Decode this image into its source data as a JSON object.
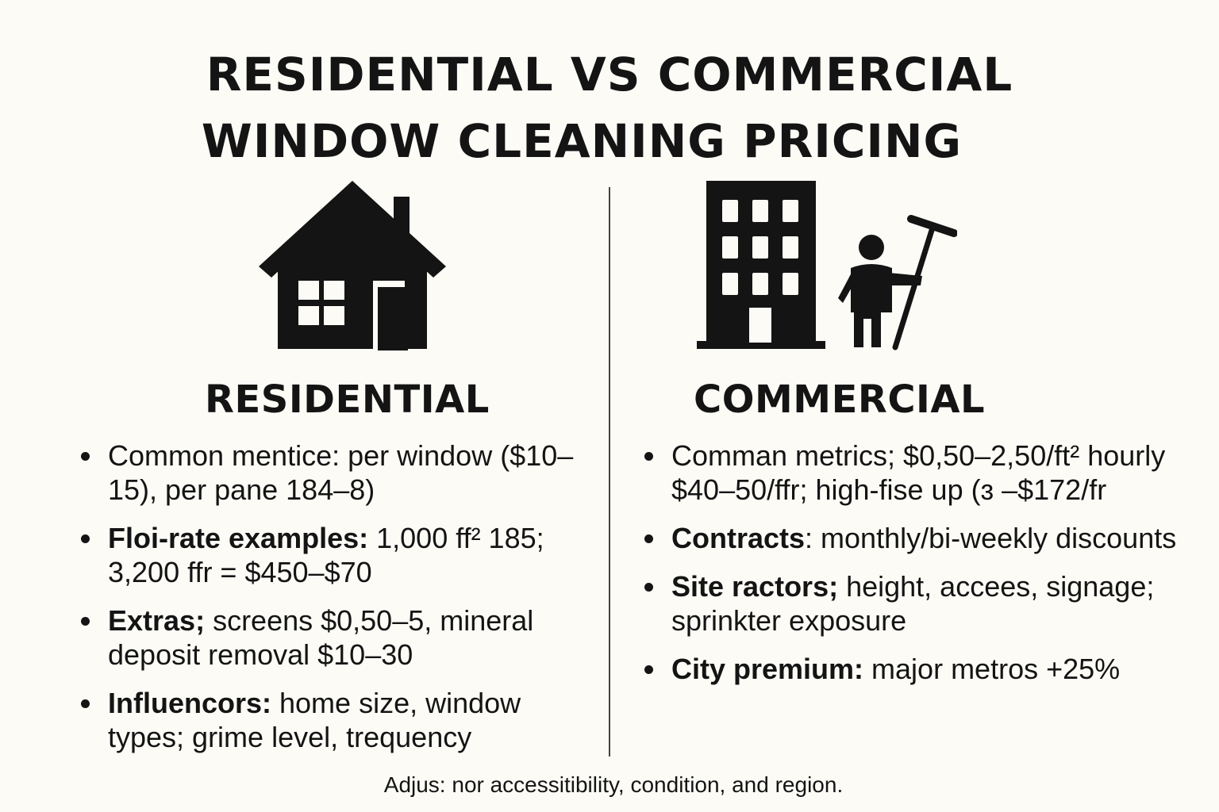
{
  "title": {
    "line1": "RESIDENTIAL VS COMMERCIAL",
    "line2": "WINDOW CLEANING PRICING"
  },
  "residential": {
    "heading": "RESIDENTIAL",
    "icon": "house-icon",
    "bullets": [
      {
        "bold": "",
        "text": "Common mentice: per window ($10–15), per pane 184–8)"
      },
      {
        "bold": "Floi-rate examples:",
        "text": " 1,000 ff² 185; 3,200 ffr = $450–$70"
      },
      {
        "bold": "Extras;",
        "text": " screens $0,50–5, mineral deposit removal $10–30"
      },
      {
        "bold": "Influencors:",
        "text": " home size, window types; grime level, trequency"
      }
    ]
  },
  "commercial": {
    "heading": "COMMERCIAL",
    "icon": "office-building-window-cleaner-icon",
    "bullets": [
      {
        "bold": "",
        "text": "Comman metrics; $0,50–2,50/ft² hourly $40–50/ffr; high-fise up (ɜ –$172/fr"
      },
      {
        "bold": "Contracts",
        "text": ": monthly/bi-weekly discounts"
      },
      {
        "bold": "Site ractors;",
        "text": " height, accees, signage; sprinkter exposure"
      },
      {
        "bold": "City premium:",
        "text": " major metros +25%"
      }
    ]
  },
  "footnote": "Adjus: nor accessitibility, condition, and region.",
  "colors": {
    "background": "#fcfbf6",
    "ink": "#141414"
  }
}
